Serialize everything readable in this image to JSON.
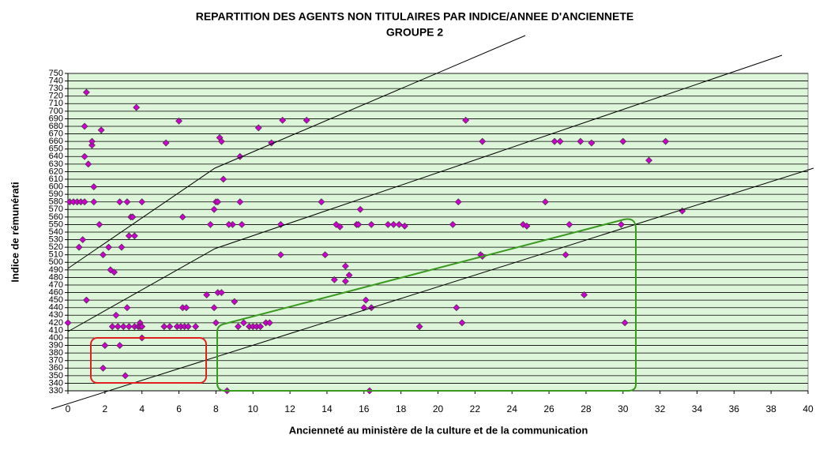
{
  "chart_data": {
    "type": "scatter",
    "title": "REPARTITION DES AGENTS NON TITULAIRES PAR INDICE/ANNEE D'ANCIENNETE",
    "subtitle": "GROUPE 2",
    "xlabel": "Ancienneté au ministère de la culture et de la communication",
    "ylabel": "Indice de rémunérati",
    "color": "#cc00cc",
    "background": "#ddf5d8",
    "grid": true,
    "xlim": [
      0,
      40
    ],
    "ylim": [
      330,
      750
    ],
    "xticks": [
      0,
      2,
      4,
      6,
      8,
      10,
      12,
      14,
      16,
      18,
      20,
      22,
      24,
      26,
      28,
      30,
      32,
      34,
      36,
      38,
      40
    ],
    "yticks": [
      330,
      340,
      350,
      360,
      370,
      380,
      390,
      400,
      410,
      420,
      430,
      440,
      450,
      460,
      470,
      480,
      490,
      500,
      510,
      520,
      530,
      540,
      550,
      560,
      570,
      580,
      590,
      600,
      610,
      620,
      630,
      640,
      650,
      660,
      670,
      680,
      690,
      700,
      710,
      720,
      730,
      740,
      750
    ],
    "series": [
      {
        "x": [
          0,
          0.1,
          0.3,
          0.5,
          0.7,
          0.9,
          0.6,
          0.8,
          0.9,
          1,
          0.9,
          1.1,
          1.3,
          1.3,
          1.4,
          1.4,
          1,
          1.7,
          1.8,
          1.9,
          2,
          1.9,
          2.2,
          2.3,
          2.5,
          2.4,
          2.6,
          2.8,
          2.7,
          2.8,
          3,
          2.9,
          3.2,
          3.2,
          3.1,
          3.3,
          3.3,
          3.4,
          3.5,
          3.6,
          3.6,
          3.7,
          3.8,
          3.9,
          3.9,
          4,
          4,
          4,
          5.2,
          5.3,
          5.5,
          5.9,
          6,
          6.1,
          6.2,
          6.2,
          6.3,
          6.4,
          6.5,
          6.9,
          7.5,
          7.7,
          7.9,
          8,
          8.1,
          8,
          7.9,
          8.1,
          8.3,
          8.2,
          8.3,
          8.4,
          8.6,
          8.9,
          8.7,
          9,
          9.2,
          9.3,
          9.3,
          9.4,
          9.5,
          9.8,
          10,
          10.2,
          10.3,
          10.4,
          10.7,
          10.9,
          11,
          11.5,
          11.6,
          11.5,
          12.9,
          13.7,
          13.9,
          14.4,
          14.5,
          14.7,
          15,
          15,
          15.2,
          15.6,
          15.7,
          15.8,
          16,
          16.1,
          16.3,
          16.4,
          16.4,
          17.3,
          17.6,
          17.9,
          18.2,
          19,
          20.8,
          21,
          21.1,
          21.3,
          21.5,
          22.3,
          22.4,
          22.4,
          24.6,
          24.8,
          25.8,
          26.3,
          26.6,
          26.9,
          27.1,
          27.7,
          27.9,
          28.3,
          29.9,
          30,
          30.1,
          31.4,
          32.3,
          33.2
        ],
        "values": [
          420,
          580,
          580,
          580,
          580,
          580,
          520,
          530,
          680,
          725,
          640,
          630,
          655,
          660,
          600,
          580,
          450,
          550,
          675,
          510,
          390,
          360,
          520,
          490,
          487,
          415,
          430,
          390,
          415,
          580,
          415,
          520,
          580,
          440,
          350,
          535,
          415,
          560,
          560,
          535,
          415,
          705,
          415,
          420,
          415,
          400,
          580,
          415,
          415,
          658,
          415,
          415,
          687,
          415,
          560,
          440,
          415,
          440,
          415,
          415,
          457,
          550,
          570,
          580,
          580,
          420,
          440,
          460,
          460,
          665,
          660,
          610,
          330,
          550,
          550,
          448,
          415,
          640,
          580,
          550,
          420,
          415,
          415,
          415,
          678,
          415,
          420,
          420,
          658,
          550,
          688,
          510,
          688,
          580,
          510,
          477,
          550,
          547,
          495,
          475,
          483,
          550,
          550,
          570,
          440,
          450,
          330,
          440,
          550,
          550,
          550,
          550,
          548,
          415,
          550,
          440,
          580,
          420,
          688,
          510,
          508,
          660,
          550,
          548,
          580,
          660,
          660,
          510,
          550,
          660,
          457,
          658,
          550,
          660,
          420,
          635,
          660,
          568
        ]
      }
    ]
  }
}
